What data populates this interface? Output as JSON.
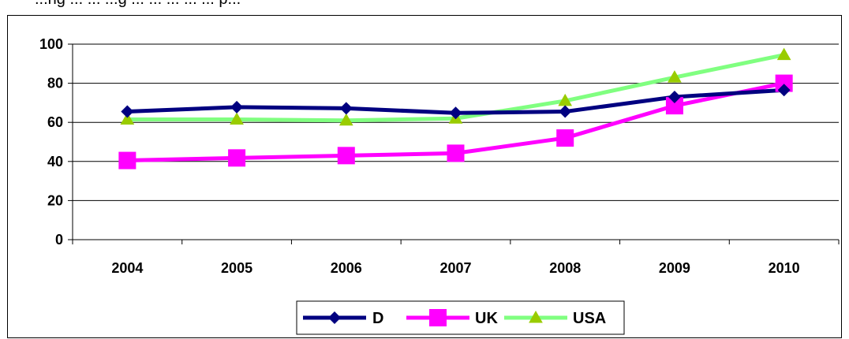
{
  "caption": "...ng ... ... ...g ... ... ... ... ... p...",
  "chart_data": {
    "type": "line",
    "title": "",
    "xlabel": "",
    "ylabel": "",
    "categories": [
      "2004",
      "2005",
      "2006",
      "2007",
      "2008",
      "2009",
      "2010"
    ],
    "ylim": [
      0,
      100
    ],
    "yticks": [
      0,
      20,
      40,
      60,
      80,
      100
    ],
    "grid": "horizontal",
    "legend_position": "bottom",
    "series": [
      {
        "name": "D",
        "color": "#000080",
        "marker": "diamond",
        "values": [
          65.5,
          67.8,
          67.2,
          64.8,
          65.5,
          73.0,
          76.5
        ]
      },
      {
        "name": "UK",
        "color": "#ff00ff",
        "marker": "square",
        "values": [
          40.5,
          41.8,
          43.0,
          44.2,
          52.0,
          68.5,
          80.0
        ]
      },
      {
        "name": "USA",
        "color": "#80ff80",
        "marker": "triangle",
        "values": [
          61.5,
          61.5,
          61.0,
          62.0,
          71.0,
          83.0,
          94.5
        ]
      }
    ]
  }
}
